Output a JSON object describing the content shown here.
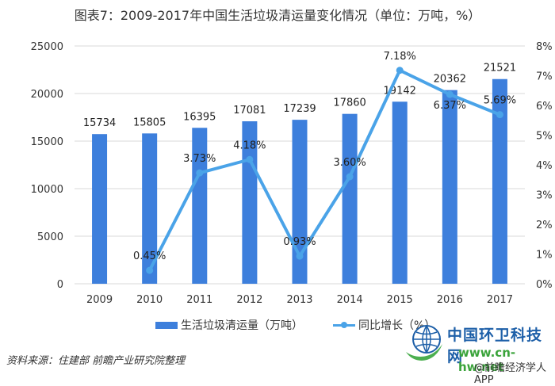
{
  "title": "图表7：2009-2017年中国生活垃圾清运量变化情况（单位：万吨，%）",
  "legend": {
    "bar_label": "生活垃圾清运量（万吨）",
    "line_label": "同比增长（%）"
  },
  "source": "资料来源：住建部  前瞻产业研究院整理",
  "brand": {
    "name": "中国环卫科技网",
    "url": "www.cn-hw.net",
    "app": "@前瞻经济学人APP"
  },
  "colors": {
    "bar": "#3d7fdc",
    "line": "#4aa3e8",
    "grid": "#d9d9d9",
    "axis_text": "#333333"
  },
  "chart_data": {
    "type": "bar",
    "title": "图表7：2009-2017年中国生活垃圾清运量变化情况（单位：万吨，%）",
    "categories": [
      "2009",
      "2010",
      "2011",
      "2012",
      "2013",
      "2014",
      "2015",
      "2016",
      "2017"
    ],
    "series": [
      {
        "name": "生活垃圾清运量（万吨）",
        "type": "bar",
        "axis": "left",
        "values": [
          15734,
          15805,
          16395,
          17081,
          17239,
          17860,
          19142,
          20362,
          21521
        ]
      },
      {
        "name": "同比增长（%）",
        "type": "line",
        "axis": "right",
        "values": [
          null,
          0.45,
          3.73,
          4.18,
          0.93,
          3.6,
          7.18,
          6.37,
          5.69
        ]
      }
    ],
    "xlabel": "",
    "ylabel": "",
    "ylim": [
      0,
      25000
    ],
    "yticks": [
      0,
      5000,
      10000,
      15000,
      20000,
      25000
    ],
    "y2lim": [
      0,
      8
    ],
    "y2ticks": [
      "0%",
      "1%",
      "2%",
      "3%",
      "4%",
      "5%",
      "6%",
      "7%",
      "8%"
    ],
    "grid": true,
    "legend_position": "bottom"
  }
}
